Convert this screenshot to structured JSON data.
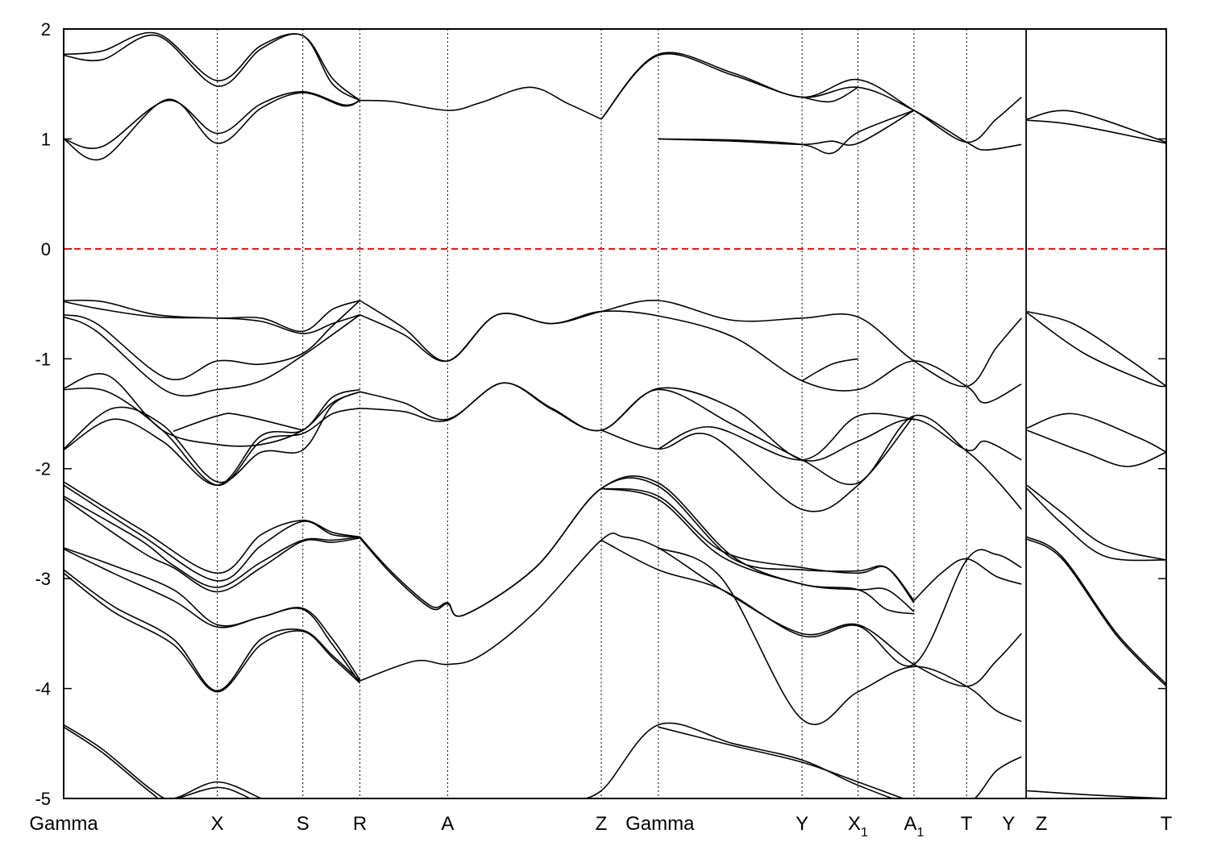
{
  "chart_data": {
    "type": "line",
    "title": "",
    "xlabel": "",
    "ylabel": "",
    "ylim": [
      -5,
      2
    ],
    "yticks": [
      2,
      1,
      0,
      -1,
      -2,
      -3,
      -4,
      -5
    ],
    "ytick_labels": [
      "2",
      "1",
      "0",
      "-1",
      "-2",
      "-3",
      "-4",
      "-5"
    ],
    "xlim": [
      0,
      10.05
    ],
    "kpoints": [
      {
        "x": 0.0,
        "label": "Gamma",
        "sub": ""
      },
      {
        "x": 1.4,
        "label": "X",
        "sub": ""
      },
      {
        "x": 2.18,
        "label": "S",
        "sub": ""
      },
      {
        "x": 2.7,
        "label": "R",
        "sub": ""
      },
      {
        "x": 3.5,
        "label": "A",
        "sub": ""
      },
      {
        "x": 4.9,
        "label": "Z",
        "sub": ""
      },
      {
        "x": 5.42,
        "label": "Gamma",
        "sub": ""
      },
      {
        "x": 6.73,
        "label": "Y",
        "sub": ""
      },
      {
        "x": 7.24,
        "label": "X",
        "sub": "1"
      },
      {
        "x": 7.75,
        "label": "A",
        "sub": "1"
      },
      {
        "x": 8.23,
        "label": "T",
        "sub": ""
      },
      {
        "x": 8.73,
        "label": "Y",
        "sub": ""
      },
      {
        "x": 8.78,
        "label": "Z",
        "sub": ""
      },
      {
        "x": 10.05,
        "label": "T",
        "sub": ""
      }
    ],
    "fermi_level": 0,
    "colors": {
      "bands": "#000000",
      "fermi": "#dd1111",
      "frame": "#000000"
    },
    "series": [
      {
        "x": [
          0.0,
          0.35,
          0.85,
          1.4,
          1.8,
          2.18,
          2.45,
          2.7
        ],
        "values": [
          1.77,
          1.8,
          1.96,
          1.53,
          1.85,
          1.94,
          1.55,
          1.35
        ]
      },
      {
        "x": [
          0.0,
          0.35,
          0.85,
          1.4,
          1.8,
          2.18,
          2.45,
          2.7
        ],
        "values": [
          1.76,
          1.72,
          1.94,
          1.48,
          1.82,
          1.94,
          1.5,
          1.35
        ]
      },
      {
        "x": [
          0.0,
          0.35,
          0.95,
          1.4,
          1.8,
          2.18,
          2.55,
          2.7
        ],
        "values": [
          1.0,
          0.93,
          1.35,
          1.05,
          1.32,
          1.43,
          1.31,
          1.35
        ]
      },
      {
        "x": [
          0.0,
          0.35,
          0.95,
          1.4,
          1.8,
          2.18,
          2.55,
          2.7
        ],
        "values": [
          1.0,
          0.82,
          1.36,
          0.96,
          1.28,
          1.42,
          1.3,
          1.35
        ]
      },
      {
        "x": [
          2.7,
          3.0,
          3.5,
          3.8,
          4.25,
          4.6,
          4.9
        ],
        "values": [
          1.35,
          1.34,
          1.26,
          1.33,
          1.47,
          1.32,
          1.18
        ]
      },
      {
        "x": [
          4.9,
          5.42,
          6.1,
          6.73,
          7.24,
          7.75,
          8.23,
          8.5,
          8.73
        ],
        "values": [
          1.18,
          1.77,
          1.6,
          1.38,
          1.54,
          1.26,
          0.97,
          1.18,
          1.38
        ]
      },
      {
        "x": [
          4.9,
          5.42,
          6.1,
          6.73,
          7.24,
          7.75,
          8.23,
          8.4,
          8.73
        ],
        "values": [
          1.18,
          1.76,
          1.58,
          1.38,
          1.47,
          1.26,
          0.97,
          0.9,
          0.95
        ]
      },
      {
        "x": [
          5.42,
          6.1,
          6.73,
          7.0,
          7.24,
          7.75
        ],
        "values": [
          1.0,
          0.99,
          0.95,
          0.87,
          1.06,
          1.26
        ]
      },
      {
        "x": [
          5.42,
          6.1,
          6.73,
          7.0,
          7.24,
          7.75
        ],
        "values": [
          1.0,
          0.98,
          0.95,
          0.98,
          0.96,
          1.26
        ]
      },
      {
        "x": [
          6.73,
          7.0,
          7.24
        ],
        "values": [
          1.38,
          1.34,
          1.47
        ]
      },
      {
        "x": [
          8.78,
          9.2,
          10.05
        ],
        "values": [
          1.18,
          1.25,
          0.97
        ]
      },
      {
        "x": [
          8.78,
          9.2,
          10.05
        ],
        "values": [
          1.17,
          1.13,
          0.96
        ]
      },
      {
        "x": [
          0.0,
          0.35,
          0.85,
          1.4,
          1.8,
          2.18,
          2.45,
          2.7
        ],
        "values": [
          -0.47,
          -0.48,
          -0.6,
          -0.63,
          -0.63,
          -0.75,
          -0.55,
          -0.47
        ]
      },
      {
        "x": [
          0.0,
          0.35,
          0.85,
          1.4,
          1.8,
          2.18,
          2.45,
          2.7
        ],
        "values": [
          -0.48,
          -0.55,
          -0.62,
          -0.63,
          -0.66,
          -0.77,
          -0.68,
          -0.6
        ]
      },
      {
        "x": [
          0.0,
          0.3,
          0.95,
          1.4,
          1.8,
          2.18,
          2.45,
          2.7
        ],
        "values": [
          -0.6,
          -0.68,
          -1.18,
          -1.02,
          -1.05,
          -0.95,
          -0.7,
          -0.47
        ]
      },
      {
        "x": [
          0.0,
          0.3,
          0.95,
          1.4,
          1.8,
          2.18,
          2.45,
          2.7
        ],
        "values": [
          -0.62,
          -0.75,
          -1.3,
          -1.28,
          -1.2,
          -0.97,
          -0.78,
          -0.6
        ]
      },
      {
        "x": [
          2.7,
          3.1,
          3.5,
          3.95,
          4.45,
          4.9,
          5.42,
          6.1,
          6.73,
          7.24,
          7.75,
          8.23,
          8.5,
          8.73
        ],
        "values": [
          -0.47,
          -0.72,
          -1.02,
          -0.6,
          -0.68,
          -0.57,
          -0.47,
          -0.65,
          -0.63,
          -0.62,
          -1.02,
          -1.25,
          -0.9,
          -0.63
        ]
      },
      {
        "x": [
          2.7,
          3.1,
          3.5,
          3.95,
          4.45,
          4.9,
          5.42,
          6.1,
          6.73,
          7.24,
          7.75,
          8.23,
          8.4,
          8.73
        ],
        "values": [
          -0.6,
          -0.78,
          -1.02,
          -0.6,
          -0.68,
          -0.57,
          -0.61,
          -0.8,
          -1.2,
          -1.28,
          -1.02,
          -1.25,
          -1.4,
          -1.23
        ]
      },
      {
        "x": [
          0.0,
          0.4,
          0.9,
          1.4,
          1.8,
          2.18,
          2.45,
          2.7
        ],
        "values": [
          -1.27,
          -1.15,
          -1.65,
          -1.78,
          -1.78,
          -1.65,
          -1.4,
          -1.3
        ]
      },
      {
        "x": [
          0.0,
          0.4,
          0.9,
          1.4,
          1.8,
          2.18,
          2.45,
          2.7
        ],
        "values": [
          -1.28,
          -1.3,
          -1.65,
          -2.15,
          -1.75,
          -1.68,
          -1.5,
          -1.45
        ]
      },
      {
        "x": [
          0.0,
          0.45,
          0.9,
          1.4,
          1.8,
          2.18,
          2.45,
          2.7
        ],
        "values": [
          -1.82,
          -1.45,
          -1.6,
          -2.12,
          -1.85,
          -1.83,
          -1.42,
          -1.3
        ]
      },
      {
        "x": [
          0.0,
          0.45,
          0.9,
          1.4,
          1.8,
          2.18,
          2.45,
          2.7
        ],
        "values": [
          -1.83,
          -1.55,
          -1.75,
          -2.15,
          -1.7,
          -1.65,
          -1.35,
          -1.28
        ]
      },
      {
        "x": [
          1.0,
          1.4,
          1.6,
          2.18
        ],
        "values": [
          -1.66,
          -1.52,
          -1.51,
          -1.65
        ]
      },
      {
        "x": [
          2.7,
          3.1,
          3.5,
          4.0,
          4.45,
          4.9,
          5.42,
          6.1,
          6.73,
          7.24,
          7.75,
          8.23,
          8.4,
          8.73
        ],
        "values": [
          -1.3,
          -1.4,
          -1.55,
          -1.22,
          -1.45,
          -1.65,
          -1.27,
          -1.45,
          -1.92,
          -1.75,
          -1.55,
          -1.83,
          -1.75,
          -1.92
        ]
      },
      {
        "x": [
          2.7,
          3.1,
          3.5,
          4.0,
          4.45,
          4.9,
          5.42,
          6.1,
          6.73,
          7.24,
          7.75,
          8.23,
          8.5,
          8.73
        ],
        "values": [
          -1.45,
          -1.48,
          -1.56,
          -1.22,
          -1.46,
          -1.65,
          -1.28,
          -1.6,
          -1.92,
          -2.13,
          -1.52,
          -1.84,
          -2.1,
          -2.37
        ]
      },
      {
        "x": [
          4.9,
          5.42,
          5.9,
          6.73,
          7.24,
          7.75
        ],
        "values": [
          -1.65,
          -1.82,
          -1.7,
          -2.37,
          -2.15,
          -1.52
        ]
      },
      {
        "x": [
          5.42,
          5.9,
          6.73,
          7.24,
          7.75
        ],
        "values": [
          -1.82,
          -1.62,
          -1.92,
          -1.52,
          -1.55
        ]
      },
      {
        "x": [
          6.73,
          7.0,
          7.24
        ],
        "values": [
          -1.2,
          -1.05,
          -1.0
        ]
      },
      {
        "x": [
          8.78,
          9.2,
          9.7,
          10.05
        ],
        "values": [
          -0.57,
          -0.68,
          -1.0,
          -1.25
        ]
      },
      {
        "x": [
          8.78,
          9.3,
          9.9,
          10.05
        ],
        "values": [
          -0.58,
          -0.95,
          -1.22,
          -1.25
        ]
      },
      {
        "x": [
          8.78,
          9.2,
          9.8,
          10.05
        ],
        "values": [
          -1.63,
          -1.5,
          -1.72,
          -1.85
        ]
      },
      {
        "x": [
          8.78,
          9.3,
          9.7,
          10.05
        ],
        "values": [
          -1.65,
          -1.85,
          -1.98,
          -1.85
        ]
      },
      {
        "x": [
          0.0,
          0.7,
          1.4,
          1.8,
          2.18,
          2.45,
          2.7
        ],
        "values": [
          -2.12,
          -2.55,
          -2.95,
          -2.6,
          -2.47,
          -2.58,
          -2.62
        ]
      },
      {
        "x": [
          0.0,
          0.7,
          1.4,
          1.8,
          2.18,
          2.45,
          2.7
        ],
        "values": [
          -2.15,
          -2.6,
          -3.02,
          -2.7,
          -2.48,
          -2.6,
          -2.62
        ]
      },
      {
        "x": [
          0.0,
          0.7,
          1.0,
          1.4,
          1.8,
          2.18,
          2.45,
          2.7
        ],
        "values": [
          -2.25,
          -2.65,
          -2.88,
          -3.08,
          -2.85,
          -2.65,
          -2.65,
          -2.62
        ]
      },
      {
        "x": [
          0.0,
          0.7,
          1.0,
          1.4,
          1.8,
          2.18,
          2.45,
          2.7
        ],
        "values": [
          -2.27,
          -2.75,
          -2.9,
          -3.12,
          -2.9,
          -2.66,
          -2.67,
          -2.63
        ]
      },
      {
        "x": [
          2.7,
          3.0,
          3.35,
          3.5,
          3.65,
          4.3,
          4.9,
          5.42,
          6.1,
          6.73,
          7.24,
          7.5,
          7.75
        ],
        "values": [
          -2.62,
          -2.95,
          -3.25,
          -3.22,
          -3.33,
          -2.9,
          -2.18,
          -2.13,
          -2.8,
          -3.05,
          -3.1,
          -3.1,
          -3.3
        ]
      },
      {
        "x": [
          2.7,
          3.0,
          3.35,
          3.5,
          3.65,
          4.3,
          4.9,
          5.42,
          6.1,
          6.73,
          7.24,
          7.5,
          7.75
        ],
        "values": [
          -2.63,
          -2.97,
          -3.27,
          -3.23,
          -3.33,
          -2.9,
          -2.18,
          -2.16,
          -2.82,
          -2.92,
          -2.93,
          -2.9,
          -3.22
        ]
      },
      {
        "x": [
          4.9,
          5.42,
          6.0,
          6.73,
          7.24,
          7.5,
          7.75
        ],
        "values": [
          -2.18,
          -2.25,
          -2.75,
          -2.9,
          -2.95,
          -2.9,
          -3.2
        ]
      },
      {
        "x": [
          4.9,
          5.42,
          6.0,
          6.73,
          7.24,
          7.5,
          7.75
        ],
        "values": [
          -2.18,
          -2.28,
          -2.8,
          -3.05,
          -3.1,
          -3.28,
          -3.32
        ]
      },
      {
        "x": [
          0.0,
          0.45,
          1.0,
          1.4,
          1.8,
          2.18,
          2.45,
          2.7
        ],
        "values": [
          -2.72,
          -2.88,
          -3.1,
          -3.42,
          -3.35,
          -3.27,
          -3.55,
          -3.92
        ]
      },
      {
        "x": [
          0.0,
          0.45,
          1.0,
          1.4,
          1.8,
          2.18,
          2.45,
          2.7
        ],
        "values": [
          -2.73,
          -2.95,
          -3.2,
          -3.44,
          -3.35,
          -3.28,
          -3.6,
          -3.95
        ]
      },
      {
        "x": [
          0.0,
          0.45,
          1.0,
          1.4,
          1.8,
          2.18,
          2.45,
          2.7
        ],
        "values": [
          -2.92,
          -3.25,
          -3.55,
          -4.02,
          -3.55,
          -3.47,
          -3.7,
          -3.93
        ]
      },
      {
        "x": [
          0.0,
          0.45,
          1.0,
          1.4,
          1.8,
          2.18,
          2.45,
          2.7
        ],
        "values": [
          -2.95,
          -3.3,
          -3.6,
          -4.03,
          -3.6,
          -3.48,
          -3.72,
          -3.95
        ]
      },
      {
        "x": [
          2.7,
          3.2,
          3.5,
          3.8,
          4.3,
          4.9,
          5.1,
          5.42,
          6.0,
          6.73,
          7.24,
          7.75,
          8.23,
          8.5,
          8.73
        ],
        "values": [
          -3.93,
          -3.75,
          -3.78,
          -3.7,
          -3.3,
          -2.65,
          -2.62,
          -2.72,
          -3.1,
          -3.5,
          -3.42,
          -3.78,
          -3.98,
          -3.75,
          -3.5
        ]
      },
      {
        "x": [
          4.9,
          5.42,
          6.0,
          6.73,
          7.24,
          7.75,
          8.23,
          8.5,
          8.73
        ],
        "values": [
          -2.65,
          -2.92,
          -3.1,
          -3.52,
          -3.43,
          -3.78,
          -2.83,
          -2.78,
          -2.9
        ]
      },
      {
        "x": [
          5.42,
          6.0,
          6.73,
          7.24,
          7.75,
          8.23,
          8.5,
          8.73
        ],
        "values": [
          -2.72,
          -3.0,
          -4.28,
          -4.03,
          -3.8,
          -3.98,
          -4.2,
          -4.3
        ]
      },
      {
        "x": [
          7.75,
          8.0,
          8.23,
          8.5,
          8.73
        ],
        "values": [
          -3.2,
          -2.95,
          -2.82,
          -2.98,
          -3.05
        ]
      },
      {
        "x": [
          8.78,
          9.1,
          9.5,
          10.05
        ],
        "values": [
          -2.15,
          -2.4,
          -2.7,
          -2.83
        ]
      },
      {
        "x": [
          8.78,
          9.1,
          9.5,
          10.05
        ],
        "values": [
          -2.18,
          -2.5,
          -2.8,
          -2.83
        ]
      },
      {
        "x": [
          8.78,
          9.1,
          9.6,
          10.05
        ],
        "values": [
          -2.62,
          -2.8,
          -3.5,
          -3.96
        ]
      },
      {
        "x": [
          8.78,
          9.1,
          9.6,
          10.05
        ],
        "values": [
          -2.64,
          -2.82,
          -3.52,
          -3.98
        ]
      },
      {
        "x": [
          0.0,
          0.35,
          0.8,
          1.0,
          1.4,
          1.8,
          1.9
        ],
        "values": [
          -4.33,
          -4.55,
          -4.92,
          -5.0,
          -4.85,
          -5.0,
          -5.05
        ]
      },
      {
        "x": [
          0.0,
          0.35,
          0.8,
          0.95,
          1.4,
          1.7,
          1.8
        ],
        "values": [
          -4.35,
          -4.58,
          -4.95,
          -5.02,
          -4.9,
          -5.0,
          -5.05
        ]
      },
      {
        "x": [
          4.55,
          4.9,
          5.42,
          6.1,
          6.73,
          7.24,
          7.75,
          8.23,
          8.5,
          8.73
        ],
        "values": [
          -5.02,
          -4.93,
          -4.33,
          -4.5,
          -4.65,
          -4.88,
          -5.05,
          -5.05,
          -4.75,
          -4.62
        ]
      },
      {
        "x": [
          5.42,
          6.1,
          6.73,
          7.24,
          7.65
        ],
        "values": [
          -4.35,
          -4.52,
          -4.67,
          -4.85,
          -5.0
        ]
      },
      {
        "x": [
          8.78,
          9.4,
          10.05
        ],
        "values": [
          -4.93,
          -4.97,
          -5.0
        ]
      }
    ]
  }
}
